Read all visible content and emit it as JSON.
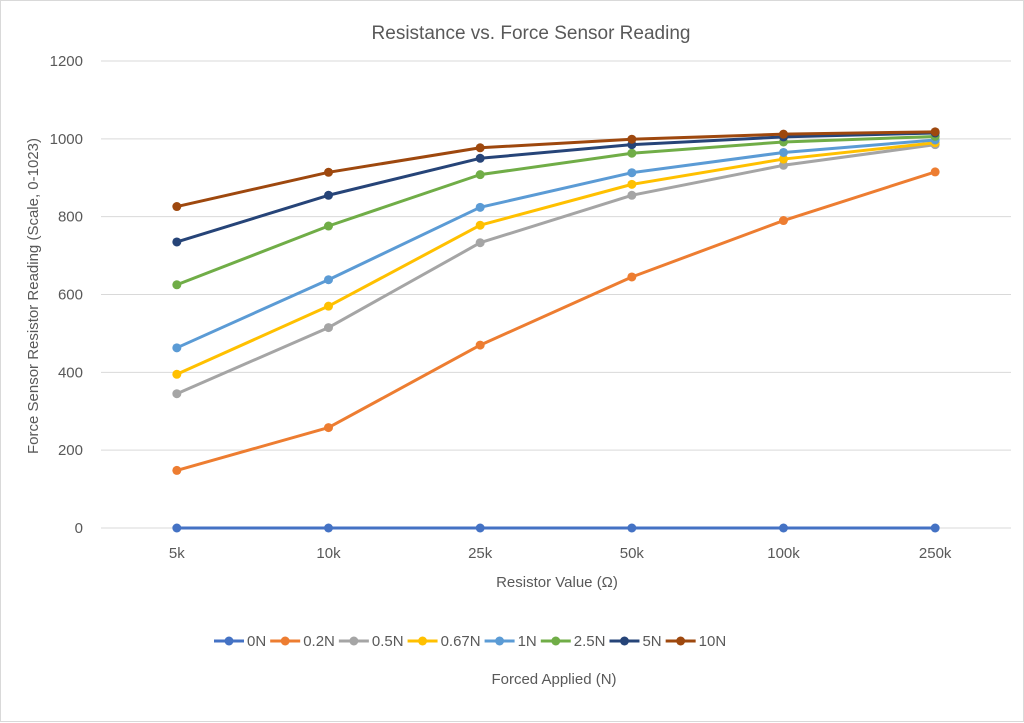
{
  "chart_data": {
    "type": "line",
    "title": "Resistance vs. Force Sensor Reading",
    "xlabel": "Resistor Value (Ω)",
    "ylabel": "Force Sensor Resistor Reading (Scale, 0-1023)",
    "legend_title": "Forced Applied (N)",
    "legend_position": "bottom",
    "grid": true,
    "categories": [
      "5k",
      "10k",
      "25k",
      "50k",
      "100k",
      "250k"
    ],
    "ylim": [
      0,
      1200
    ],
    "yticks": [
      0,
      200,
      400,
      600,
      800,
      1000,
      1200
    ],
    "series": [
      {
        "name": "0N",
        "color": "#4472C4",
        "values": [
          0,
          0,
          0,
          0,
          0,
          0
        ]
      },
      {
        "name": "0.2N",
        "color": "#ED7D31",
        "values": [
          148,
          258,
          470,
          645,
          790,
          915
        ]
      },
      {
        "name": "0.5N",
        "color": "#A5A5A5",
        "values": [
          345,
          515,
          733,
          855,
          932,
          985
        ]
      },
      {
        "name": "0.67N",
        "color": "#FFC000",
        "values": [
          395,
          570,
          778,
          883,
          948,
          990
        ]
      },
      {
        "name": "1N",
        "color": "#5B9BD5",
        "values": [
          463,
          638,
          824,
          913,
          965,
          997
        ]
      },
      {
        "name": "2.5N",
        "color": "#70AD47",
        "values": [
          625,
          776,
          908,
          963,
          992,
          1006
        ]
      },
      {
        "name": "5N",
        "color": "#264478",
        "values": [
          735,
          855,
          950,
          985,
          1005,
          1015
        ]
      },
      {
        "name": "10N",
        "color": "#9E480E",
        "values": [
          826,
          914,
          977,
          999,
          1012,
          1018
        ]
      }
    ]
  }
}
